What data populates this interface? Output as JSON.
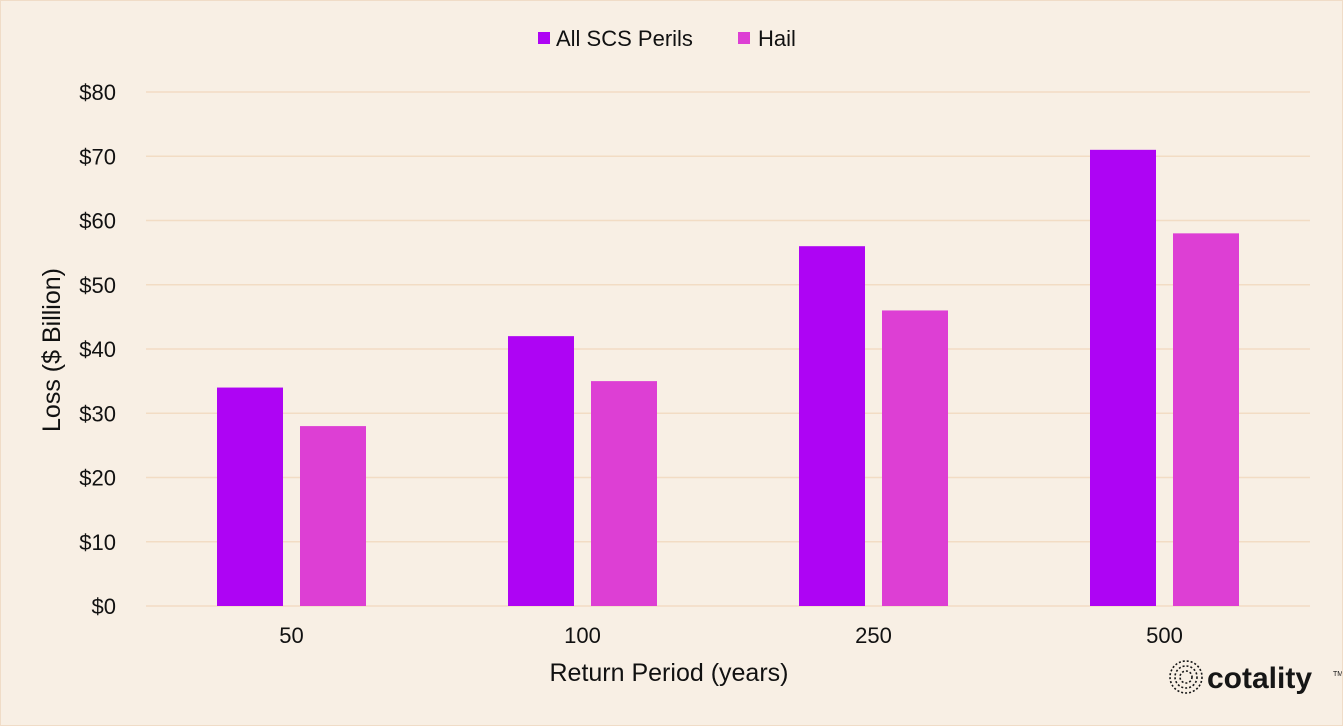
{
  "chart_data": {
    "type": "bar",
    "title": "",
    "categories": [
      "50",
      "100",
      "250",
      "500"
    ],
    "series": [
      {
        "name": "All SCS Perils",
        "values": [
          34,
          42,
          56,
          71
        ],
        "color": "#ae04f4"
      },
      {
        "name": "Hail",
        "values": [
          28,
          35,
          46,
          58
        ],
        "color": "#dd3fd4"
      }
    ],
    "xlabel": "Return Period (years)",
    "ylabel": "Loss ($ Billion)",
    "ylim": [
      0,
      80
    ],
    "yticks": [
      0,
      10,
      20,
      30,
      40,
      50,
      60,
      70,
      80
    ],
    "ytick_labels": [
      "$0",
      "$10",
      "$20",
      "$30",
      "$40",
      "$50",
      "$60",
      "$70",
      "$80"
    ],
    "grid": true,
    "grid_color": "#f2dcc4",
    "legend_position": "top-center"
  },
  "branding": {
    "logo_text": "cotality",
    "logo_icon": "cotality-globe-icon",
    "trademark": "TM"
  },
  "colors": {
    "background": "#f8efe4",
    "text": "#111111"
  }
}
